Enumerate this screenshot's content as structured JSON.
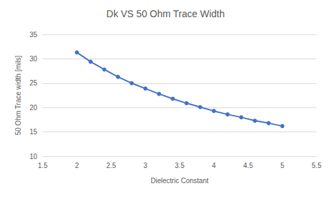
{
  "chart_data": {
    "type": "line",
    "title": "Dk VS 50 Ohm Trace Width",
    "x_label": "Dielectric Constant",
    "y_label": "50 Ohm Trace width [mils]",
    "x": [
      2,
      2.2,
      2.4,
      2.6,
      2.8,
      3,
      3.2,
      3.4,
      3.6,
      3.8,
      4,
      4.2,
      4.4,
      4.6,
      4.8,
      5
    ],
    "values": [
      31.3,
      29.4,
      27.8,
      26.3,
      25.0,
      23.9,
      22.8,
      21.8,
      20.9,
      20.1,
      19.3,
      18.6,
      18.0,
      17.3,
      16.8,
      16.2
    ],
    "color": "#4472c4",
    "marker": "circle",
    "xlim": [
      1.5,
      5.5
    ],
    "xticks": [
      1.5,
      2,
      2.5,
      3,
      3.5,
      4,
      4.5,
      5,
      5.5
    ],
    "ylim": [
      10,
      35
    ],
    "yticks": [
      10,
      15,
      20,
      25,
      30,
      35
    ],
    "grid": true
  }
}
